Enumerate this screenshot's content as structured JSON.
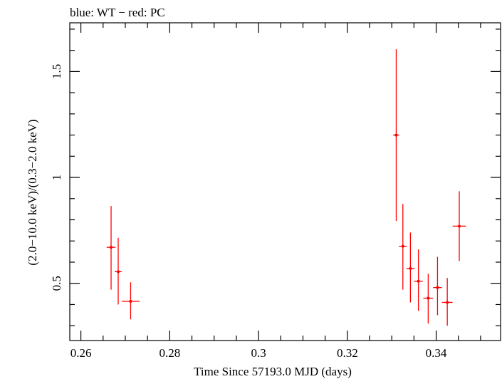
{
  "chart_data": {
    "type": "scatter",
    "title": "blue: WT − red: PC",
    "xlabel": "Time Since 57193.0 MJD (days)",
    "ylabel": "(2.0−10.0 keV)/(0.3−2.0 keV)",
    "xlim": [
      0.2575,
      0.3545
    ],
    "ylim": [
      0.23,
      1.73
    ],
    "x_ticks": [
      0.26,
      0.28,
      0.3,
      0.32,
      0.34
    ],
    "x_tick_labels": [
      "0.26",
      "0.28",
      "0.3",
      "0.32",
      "0.34"
    ],
    "y_ticks": [
      0.5,
      1,
      1.5
    ],
    "y_tick_labels": [
      "0.5",
      "1",
      "1.5"
    ],
    "grid": false,
    "series": [
      {
        "name": "PC",
        "color": "#ff0000",
        "points": [
          {
            "x": 0.2668,
            "xerr": 0.001,
            "y": 0.67,
            "ylo": 0.47,
            "yhi": 0.865
          },
          {
            "x": 0.2684,
            "xerr": 0.0008,
            "y": 0.555,
            "ylo": 0.4,
            "yhi": 0.715
          },
          {
            "x": 0.2712,
            "xerr": 0.002,
            "y": 0.415,
            "ylo": 0.33,
            "yhi": 0.505
          },
          {
            "x": 0.331,
            "xerr": 0.0007,
            "y": 1.2,
            "ylo": 0.795,
            "yhi": 1.605
          },
          {
            "x": 0.3325,
            "xerr": 0.0009,
            "y": 0.675,
            "ylo": 0.47,
            "yhi": 0.875
          },
          {
            "x": 0.3342,
            "xerr": 0.0009,
            "y": 0.57,
            "ylo": 0.41,
            "yhi": 0.74
          },
          {
            "x": 0.336,
            "xerr": 0.001,
            "y": 0.51,
            "ylo": 0.37,
            "yhi": 0.66
          },
          {
            "x": 0.3382,
            "xerr": 0.0011,
            "y": 0.43,
            "ylo": 0.31,
            "yhi": 0.545
          },
          {
            "x": 0.3403,
            "xerr": 0.001,
            "y": 0.48,
            "ylo": 0.35,
            "yhi": 0.625
          },
          {
            "x": 0.3425,
            "xerr": 0.0012,
            "y": 0.41,
            "ylo": 0.3,
            "yhi": 0.525
          },
          {
            "x": 0.3452,
            "xerr": 0.0015,
            "y": 0.77,
            "ylo": 0.605,
            "yhi": 0.935
          }
        ]
      }
    ]
  }
}
